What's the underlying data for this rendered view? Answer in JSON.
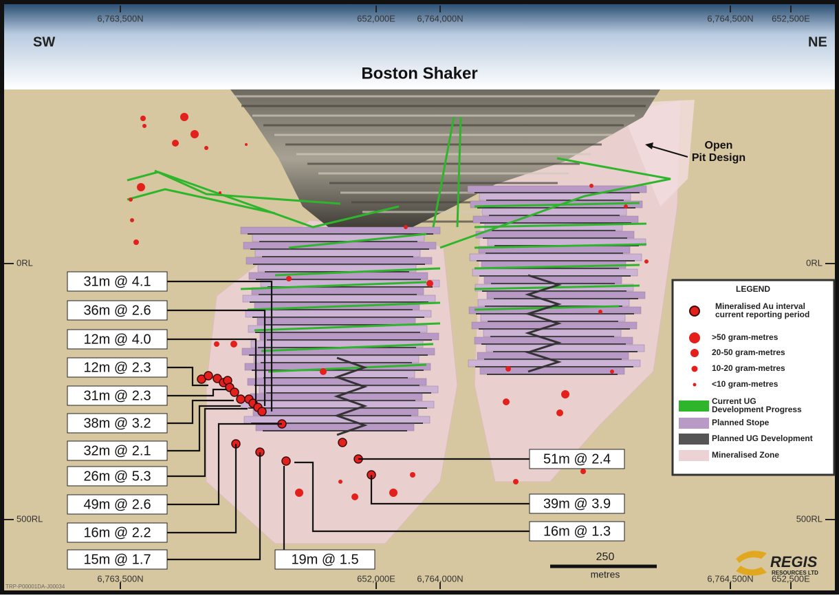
{
  "header": {
    "coords_top": [
      "6,763,500N",
      "652,000E",
      "6,764,000N",
      "6,764,500N",
      "652,500E"
    ],
    "left_direction": "SW",
    "right_direction": "NE",
    "title": "Boston Shaker"
  },
  "annotations": {
    "open_pit": [
      "Open",
      "Pit Design"
    ]
  },
  "rl_labels": {
    "left_top": "0RL",
    "right_top": "0RL",
    "left_bottom": "500RL",
    "right_bottom": "500RL"
  },
  "intercepts": [
    "31m @ 4.1",
    "36m @ 2.6",
    "12m @ 4.0",
    "12m @ 2.3",
    "31m @ 2.3",
    "38m @ 3.2",
    "32m @ 2.1",
    "26m @ 5.3",
    "49m @ 2.6",
    "16m @ 2.2",
    "15m @ 1.7",
    "19m @ 1.5",
    "51m @ 2.4",
    "39m @ 3.9",
    "16m @ 1.3"
  ],
  "legend": {
    "title": "LEGEND",
    "entries": [
      {
        "lines": [
          "Mineralised Au interval",
          "current reporting period"
        ]
      },
      {
        "lines": [
          ">50 gram-metres"
        ]
      },
      {
        "lines": [
          "20-50 gram-metres"
        ]
      },
      {
        "lines": [
          "10-20 gram-metres"
        ]
      },
      {
        "lines": [
          "<10 gram-metres"
        ]
      },
      {
        "lines": [
          "Current UG",
          "Development Progress"
        ]
      },
      {
        "lines": [
          "Planned Stope"
        ]
      },
      {
        "lines": [
          "Planned UG Development"
        ]
      },
      {
        "lines": [
          "Mineralised Zone"
        ]
      }
    ]
  },
  "scale": {
    "value": "250",
    "unit": "metres"
  },
  "logo": {
    "name": "REGIS",
    "subtitle": "RESOURCES LTD"
  },
  "footer": {
    "coords_bottom": [
      "6,763,500N",
      "652,000E",
      "6,764,000N",
      "6,764,500N",
      "652,500E"
    ],
    "drawing_id": "TRP-P00001DA-J00034"
  }
}
